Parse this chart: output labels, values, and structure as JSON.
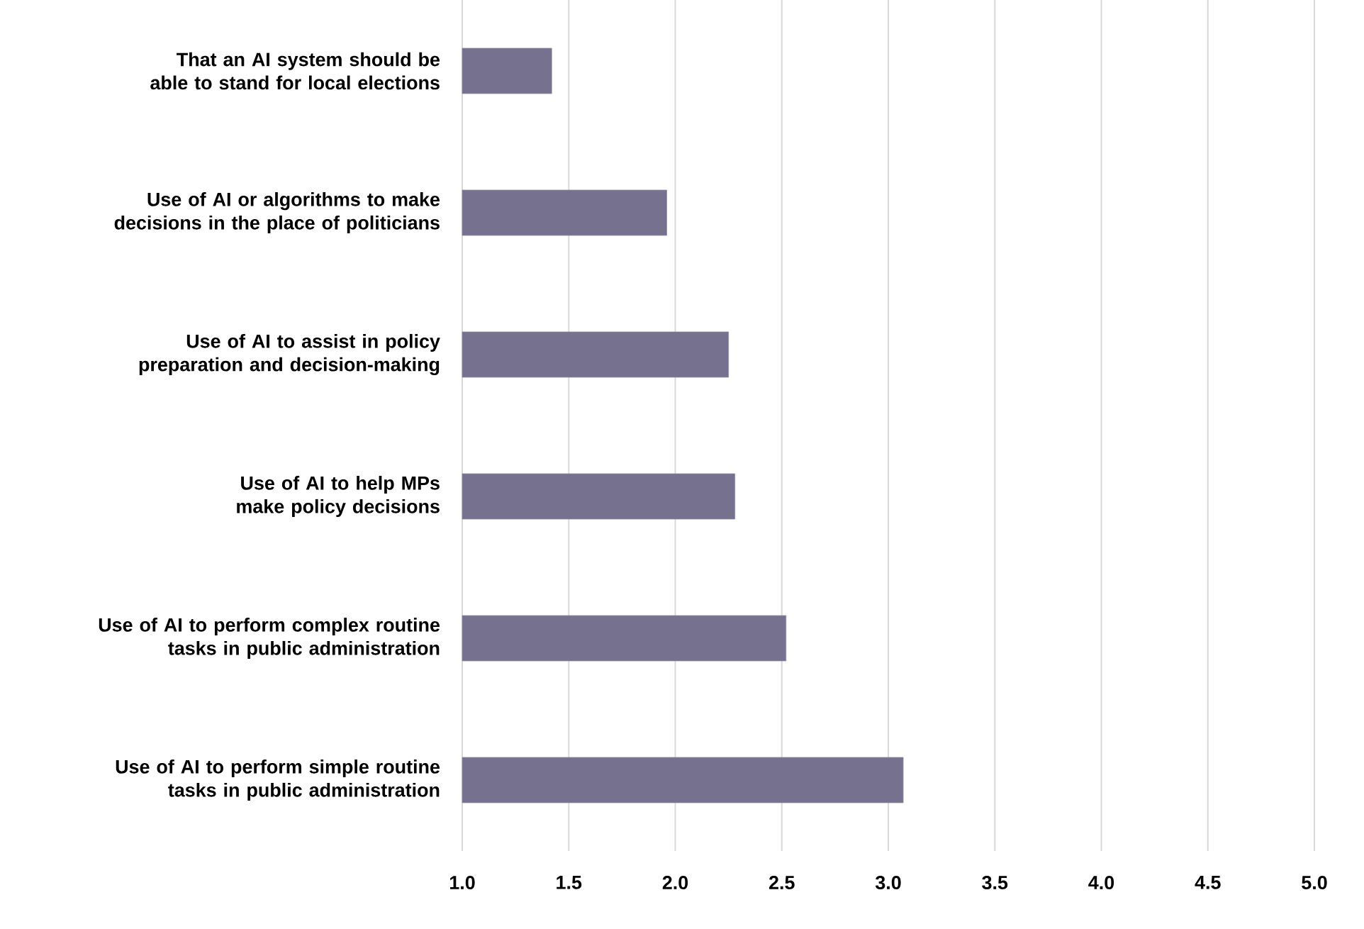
{
  "chart_data": {
    "type": "bar",
    "orientation": "horizontal",
    "categories": [
      "That an AI system should be able to stand for local elections",
      "Use of AI or algorithms to make decisions in the place of politicians",
      "Use of AI to assist in policy preparation and decision-making",
      "Use of AI to help MPs make policy decisions",
      "Use of AI to perform complex routine tasks in public administration",
      "Use of AI to perform simple routine tasks in public administration"
    ],
    "values": [
      1.42,
      1.96,
      2.25,
      2.28,
      2.52,
      3.07
    ],
    "color": "#75718e",
    "xlim": [
      1,
      5
    ],
    "xticks": [
      {
        "value": 1,
        "label": "1.0"
      },
      {
        "value": 1.5,
        "label": "1.5"
      },
      {
        "value": 2,
        "label": "2.0"
      },
      {
        "value": 2.5,
        "label": "2.5"
      },
      {
        "value": 3,
        "label": "3.0"
      },
      {
        "value": 3.5,
        "label": "3.5"
      },
      {
        "value": 4,
        "label": "4.0"
      },
      {
        "value": 4.5,
        "label": "4.5"
      },
      {
        "value": 5,
        "label": "5.0"
      }
    ],
    "grid": "x"
  }
}
